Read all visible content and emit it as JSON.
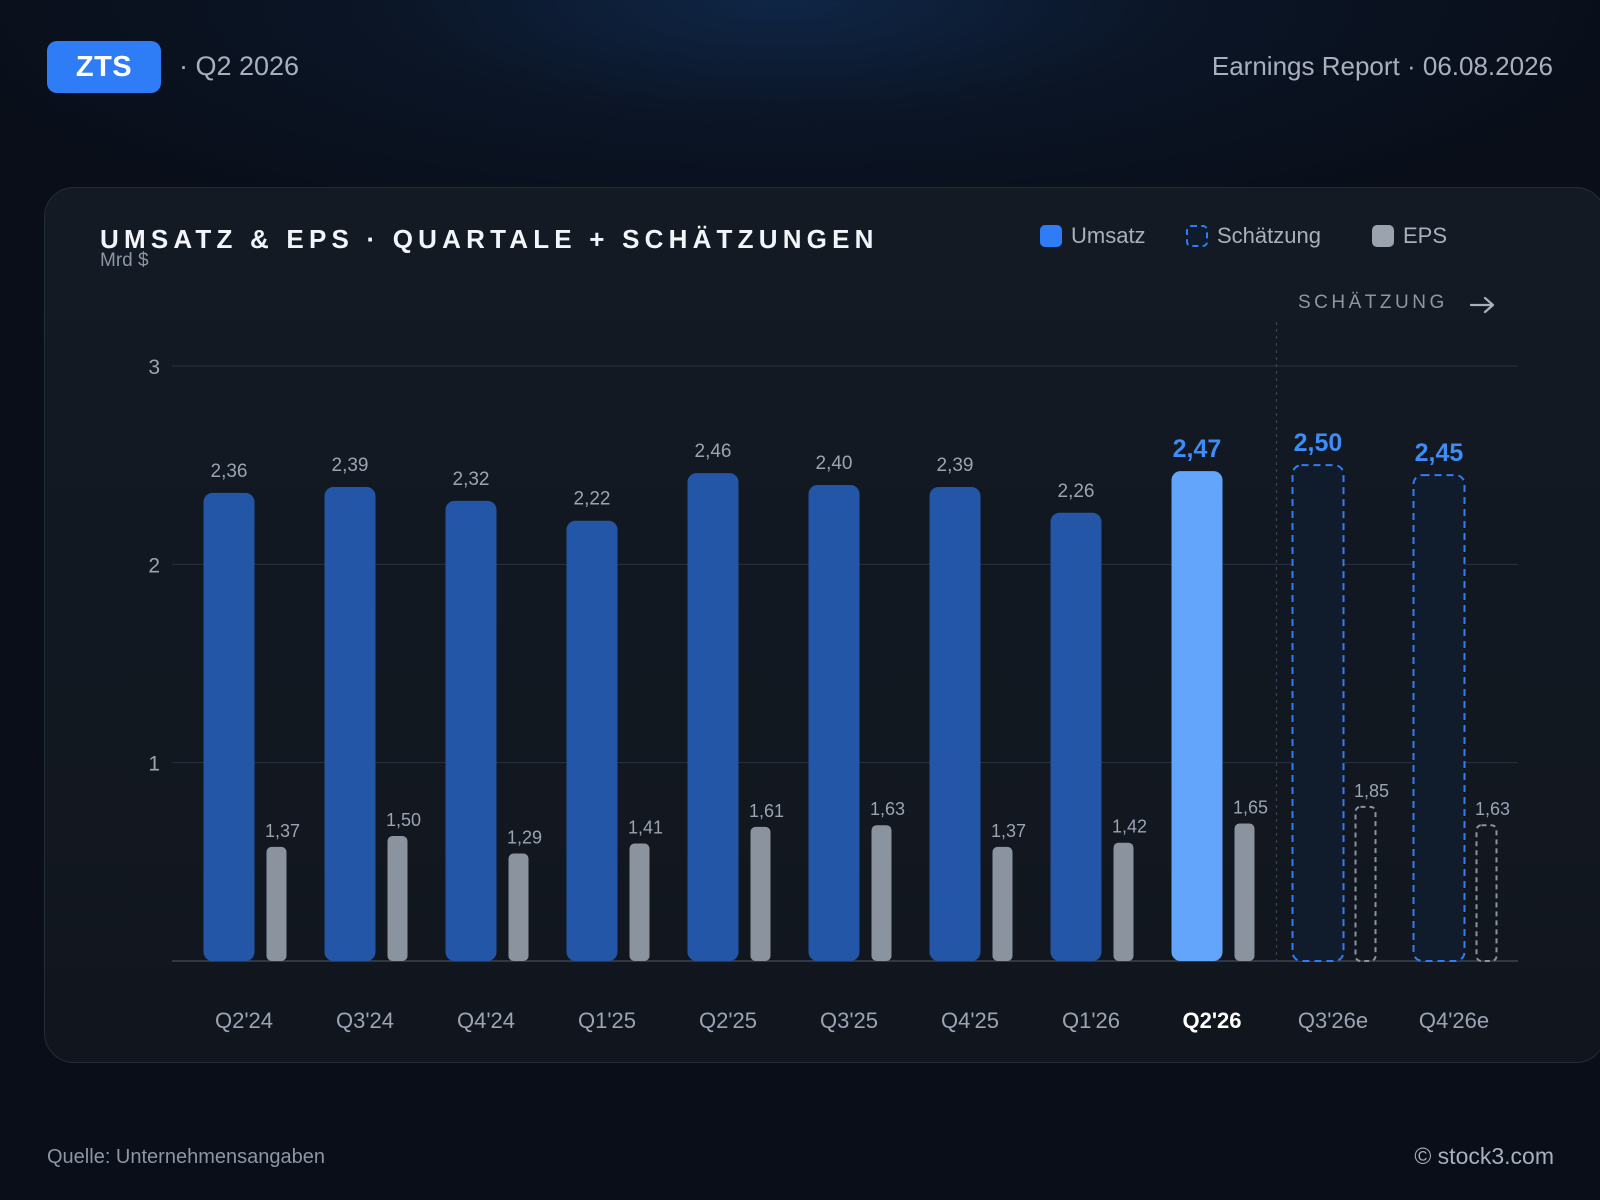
{
  "header": {
    "ticker": "ZTS",
    "period": "· Q2 2026",
    "report": "Earnings Report · 06.08.2026"
  },
  "chart_card": {
    "title": "UMSATZ & EPS · QUARTALE + SCHÄTZUNGEN",
    "unit": "Mrd $",
    "estimate_marker": "SCHÄTZUNG",
    "legend": [
      {
        "label": "Umsatz",
        "style": "solid",
        "color": "#2f7df6"
      },
      {
        "label": "Schätzung",
        "style": "dashed",
        "color": "#2f7df6"
      },
      {
        "label": "EPS",
        "style": "solid",
        "color": "#9aa3ae"
      }
    ]
  },
  "colors": {
    "revenue": "#2356a6",
    "revenue_current": "#62a5fb",
    "estimate_border": "#2f7df6",
    "estimate_fill": "#101b2c",
    "eps": "#8a939e",
    "eps_estimate_border": "#8a939e",
    "highlight_label": "#3e8cf7"
  },
  "footer": {
    "source": "Quelle: Unternehmensangaben",
    "brand": "© stock3.com"
  },
  "chart_data": {
    "type": "bar",
    "title": "UMSATZ & EPS · QUARTALE + SCHÄTZUNGEN",
    "ylabel": "Mrd $",
    "ylim": [
      0,
      3
    ],
    "yticks": [
      1,
      2,
      3
    ],
    "grid": true,
    "legend_position": "top-right",
    "categories": [
      "Q2'24",
      "Q3'24",
      "Q4'24",
      "Q1'25",
      "Q2'25",
      "Q3'25",
      "Q4'25",
      "Q1'26",
      "Q2'26",
      "Q3'26e",
      "Q4'26e"
    ],
    "current_index": 8,
    "estimate_indices": [
      9,
      10
    ],
    "series": [
      {
        "name": "Umsatz",
        "values": [
          2.36,
          2.39,
          2.32,
          2.22,
          2.46,
          2.4,
          2.39,
          2.26,
          2.47,
          2.5,
          2.45
        ],
        "labels": [
          "2,36",
          "2,39",
          "2,32",
          "2,22",
          "2,46",
          "2,40",
          "2,39",
          "2,26",
          "2,47",
          "2,50",
          "2,45"
        ]
      },
      {
        "name": "EPS",
        "values": [
          1.37,
          1.5,
          1.29,
          1.41,
          1.61,
          1.63,
          1.37,
          1.42,
          1.65,
          1.85,
          1.63
        ],
        "labels": [
          "1,37",
          "1,50",
          "1,29",
          "1,41",
          "1,61",
          "1,63",
          "1,37",
          "1,42",
          "1,65",
          "1,85",
          "1,63"
        ]
      }
    ]
  }
}
